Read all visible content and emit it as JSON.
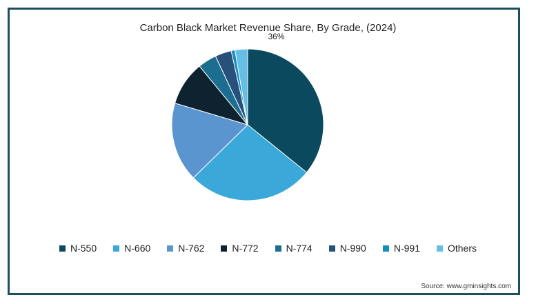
{
  "chart_data": {
    "type": "pie",
    "title": "Carbon Black Market Revenue Share, By Grade, (2024)",
    "slices": [
      {
        "label": "N-550",
        "value": 36,
        "color": "#0b4a5e",
        "data_label": "36%"
      },
      {
        "label": "N-660",
        "value": 27,
        "color": "#3aa8d8",
        "data_label": ""
      },
      {
        "label": "N-762",
        "value": 17,
        "color": "#5b95d0",
        "data_label": ""
      },
      {
        "label": "N-772",
        "value": 9.5,
        "color": "#0e2230",
        "data_label": ""
      },
      {
        "label": "N-774",
        "value": 4,
        "color": "#1c6e91",
        "data_label": ""
      },
      {
        "label": "N-990",
        "value": 3.5,
        "color": "#27517a",
        "data_label": ""
      },
      {
        "label": "N-991",
        "value": 0.8,
        "color": "#0e8fbf",
        "data_label": ""
      },
      {
        "label": "Others",
        "value": 2.7,
        "color": "#66bde6",
        "data_label": ""
      }
    ],
    "legend_position": "bottom",
    "start_angle": "top, clockwise"
  },
  "source": "Source: www.gminsights.com"
}
